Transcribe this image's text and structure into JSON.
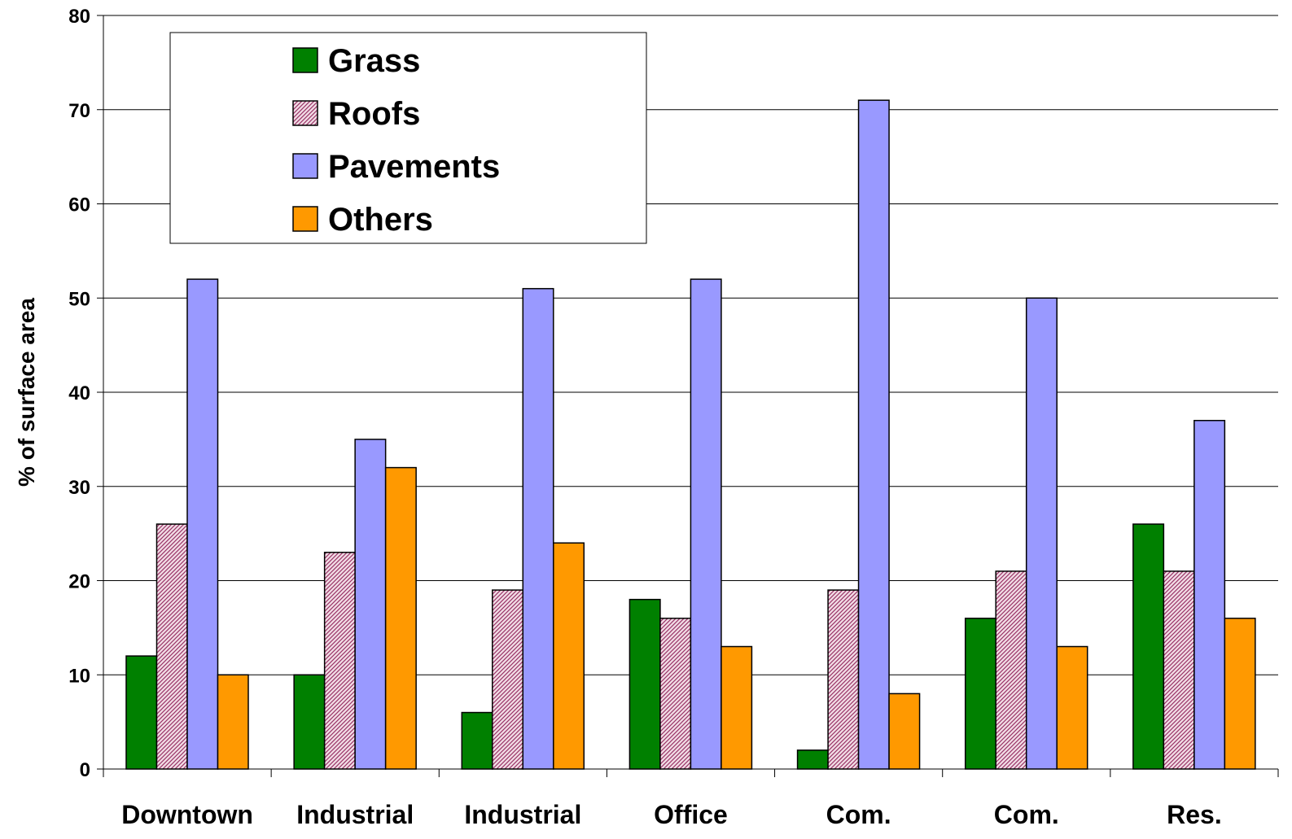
{
  "chart_data": {
    "type": "bar",
    "title": "",
    "xlabel": "",
    "ylabel": "% of surface area",
    "ylim": [
      0,
      80
    ],
    "yticks": [
      0,
      10,
      20,
      30,
      40,
      50,
      60,
      70,
      80
    ],
    "grid": "horizontal",
    "legend_position": "top-left",
    "categories": [
      "Downtown",
      "Industrial",
      "Industrial",
      "Office",
      "Com.",
      "Com.",
      "Res."
    ],
    "series": [
      {
        "name": "Grass",
        "color": "#008000",
        "pattern": "solid",
        "values": [
          12,
          10,
          6,
          18,
          2,
          16,
          26
        ]
      },
      {
        "name": "Roofs",
        "color": "#993366",
        "pattern": "hatched",
        "values": [
          26,
          23,
          19,
          16,
          19,
          21,
          21
        ]
      },
      {
        "name": "Pavements",
        "color": "#9999FF",
        "pattern": "solid",
        "values": [
          52,
          35,
          51,
          52,
          71,
          50,
          37
        ]
      },
      {
        "name": "Others",
        "color": "#FF9900",
        "pattern": "solid",
        "values": [
          10,
          32,
          24,
          13,
          8,
          13,
          16
        ]
      }
    ]
  }
}
